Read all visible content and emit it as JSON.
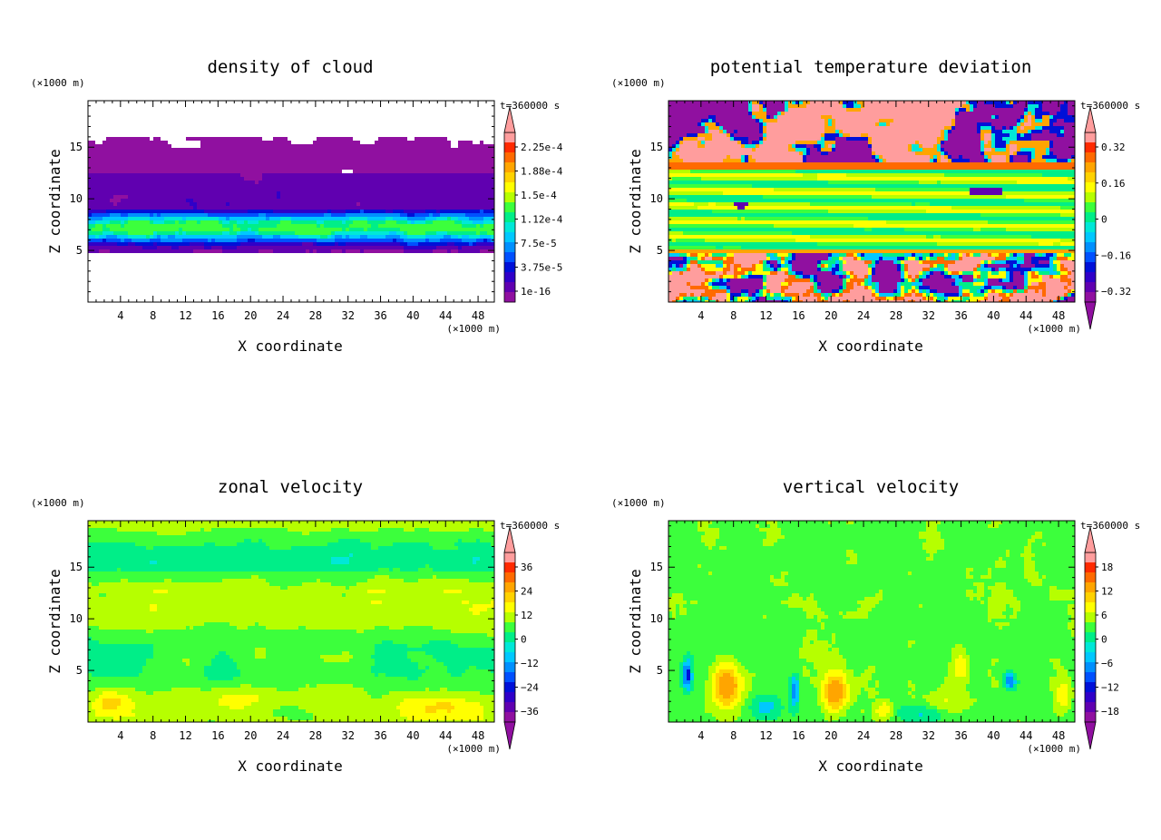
{
  "chart_data": [
    {
      "type": "heatmap",
      "title": "density of cloud",
      "xlabel": "X coordinate",
      "ylabel": "Z coordinate",
      "x_unit": "(×1000 m)",
      "y_unit": "(×1000 m)",
      "time_label": "t=360000 s",
      "xlim": [
        0,
        50
      ],
      "ylim": [
        0,
        19.5
      ],
      "x_ticks": [
        4,
        8,
        12,
        16,
        20,
        24,
        28,
        32,
        36,
        40,
        44,
        48
      ],
      "y_ticks": [
        5,
        10,
        15
      ],
      "colorbar_labels": [
        "2.25e-4",
        "1.88e-4",
        "1.5e-4",
        "1.12e-4",
        "7.5e-5",
        "3.75e-5",
        "1e-16"
      ],
      "colorbar_colors": [
        "#ff9d9d",
        "#ff2a00",
        "#ff6a00",
        "#ffa500",
        "#ffd200",
        "#ffff00",
        "#b6ff00",
        "#3cff3c",
        "#00ee88",
        "#00e8d8",
        "#00c8ff",
        "#0090ff",
        "#0050ff",
        "#0010d8",
        "#3000c8",
        "#6000b0",
        "#9010a0"
      ],
      "colorbar_arrows": "top",
      "field": "cloud"
    },
    {
      "type": "heatmap",
      "title": "potential temperature deviation",
      "xlabel": "X coordinate",
      "ylabel": "Z coordinate",
      "x_unit": "(×1000 m)",
      "y_unit": "(×1000 m)",
      "time_label": "t=360000 s",
      "xlim": [
        0,
        50
      ],
      "ylim": [
        0,
        19.5
      ],
      "x_ticks": [
        4,
        8,
        12,
        16,
        20,
        24,
        28,
        32,
        36,
        40,
        44,
        48
      ],
      "y_ticks": [
        5,
        10,
        15
      ],
      "colorbar_labels": [
        "0.32",
        "0.16",
        "0",
        "−0.16",
        "−0.32"
      ],
      "colorbar_colors": [
        "#ff9d9d",
        "#ff2a00",
        "#ff6a00",
        "#ffa500",
        "#ffd200",
        "#ffff00",
        "#b6ff00",
        "#3cff3c",
        "#00ee88",
        "#00e8d8",
        "#00c8ff",
        "#0090ff",
        "#0050ff",
        "#0010d8",
        "#3000c8",
        "#6000b0",
        "#9010a0"
      ],
      "colorbar_arrows": "both",
      "field": "theta"
    },
    {
      "type": "heatmap",
      "title": "zonal velocity",
      "xlabel": "X coordinate",
      "ylabel": "Z coordinate",
      "x_unit": "(×1000 m)",
      "y_unit": "(×1000 m)",
      "time_label": "t=360000 s",
      "xlim": [
        0,
        50
      ],
      "ylim": [
        0,
        19.5
      ],
      "x_ticks": [
        4,
        8,
        12,
        16,
        20,
        24,
        28,
        32,
        36,
        40,
        44,
        48
      ],
      "y_ticks": [
        5,
        10,
        15
      ],
      "colorbar_labels": [
        "36",
        "24",
        "12",
        "0",
        "−12",
        "−24",
        "−36"
      ],
      "colorbar_colors": [
        "#ff9d9d",
        "#ff2a00",
        "#ff6a00",
        "#ffa500",
        "#ffd200",
        "#ffff00",
        "#b6ff00",
        "#3cff3c",
        "#00ee88",
        "#00e8d8",
        "#00c8ff",
        "#0090ff",
        "#0050ff",
        "#0010d8",
        "#3000c8",
        "#6000b0",
        "#9010a0"
      ],
      "colorbar_arrows": "both",
      "field": "zonal"
    },
    {
      "type": "heatmap",
      "title": "vertical velocity",
      "xlabel": "X coordinate",
      "ylabel": "Z coordinate",
      "x_unit": "(×1000 m)",
      "y_unit": "(×1000 m)",
      "time_label": "t=360000 s",
      "xlim": [
        0,
        50
      ],
      "ylim": [
        0,
        19.5
      ],
      "x_ticks": [
        4,
        8,
        12,
        16,
        20,
        24,
        28,
        32,
        36,
        40,
        44,
        48
      ],
      "y_ticks": [
        5,
        10,
        15
      ],
      "colorbar_labels": [
        "18",
        "12",
        "6",
        "0",
        "−6",
        "−12",
        "−18"
      ],
      "colorbar_colors": [
        "#ff9d9d",
        "#ff2a00",
        "#ff6a00",
        "#ffa500",
        "#ffd200",
        "#ffff00",
        "#b6ff00",
        "#3cff3c",
        "#00ee88",
        "#00e8d8",
        "#00c8ff",
        "#0090ff",
        "#0050ff",
        "#0010d8",
        "#3000c8",
        "#6000b0",
        "#9010a0"
      ],
      "colorbar_arrows": "both",
      "field": "vertical"
    }
  ]
}
